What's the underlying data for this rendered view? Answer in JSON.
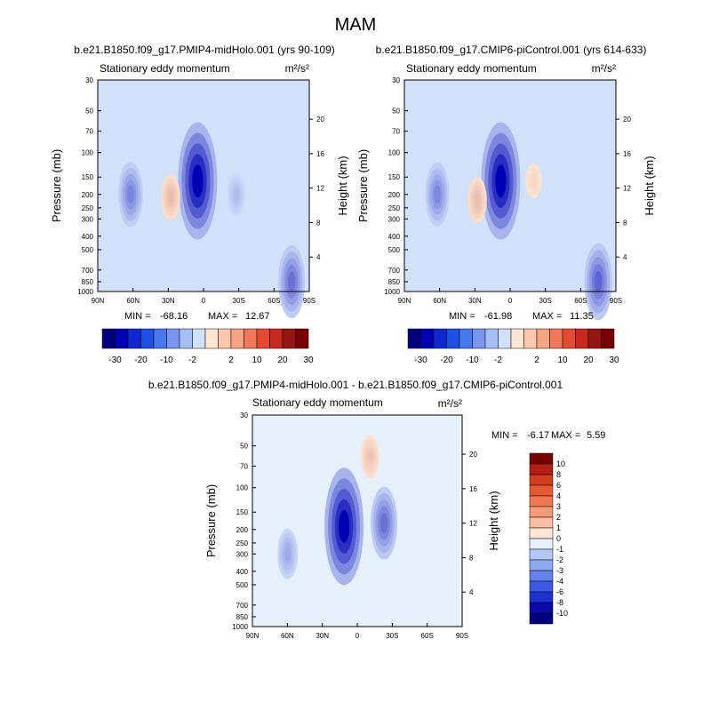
{
  "figure": {
    "title": "MAM",
    "min_label": "MIN =",
    "max_label": "MAX ="
  },
  "chart_data": [
    {
      "type": "heatmap",
      "title": "b.e21.B1850.f09_g17.PMIP4-midHolo.001 (yrs 90-109)",
      "subtitle": "Stationary eddy momentum",
      "units": "m²/s²",
      "xlabel": "",
      "ylabel": "Pressure (mb)",
      "ylabel_right": "Height (km)",
      "x_ticks": [
        "90N",
        "60N",
        "30N",
        "0",
        "30S",
        "60S",
        "90S"
      ],
      "y_ticks": [
        30,
        50,
        70,
        100,
        150,
        200,
        250,
        300,
        400,
        500,
        700,
        850,
        1000
      ],
      "height_ticks": [
        4,
        8,
        12,
        16,
        20
      ],
      "ylim": [
        1000,
        30
      ],
      "min": "-68.16",
      "max": "12.67",
      "features": [
        {
          "lat": 62,
          "p": 200,
          "value": -25
        },
        {
          "lat": 5,
          "p": 160,
          "value": -60
        },
        {
          "lat": 28,
          "p": 210,
          "value": 12
        },
        {
          "lat": -28,
          "p": 200,
          "value": -10
        },
        {
          "lat": -75,
          "p": 850,
          "value": -30
        }
      ]
    },
    {
      "type": "heatmap",
      "title": "b.e21.B1850.f09_g17.CMIP6-piControl.001 (yrs 614-633)",
      "subtitle": "Stationary eddy momentum",
      "units": "m²/s²",
      "xlabel": "",
      "ylabel": "Pressure (mb)",
      "ylabel_right": "Height (km)",
      "x_ticks": [
        "90N",
        "60N",
        "30N",
        "0",
        "30S",
        "60S",
        "90S"
      ],
      "y_ticks": [
        30,
        50,
        70,
        100,
        150,
        200,
        250,
        300,
        400,
        500,
        700,
        850,
        1000
      ],
      "height_ticks": [
        4,
        8,
        12,
        16,
        20
      ],
      "ylim": [
        1000,
        30
      ],
      "min": "-61.98",
      "max": "11.35",
      "features": [
        {
          "lat": 62,
          "p": 200,
          "value": -22
        },
        {
          "lat": 8,
          "p": 160,
          "value": -55
        },
        {
          "lat": 28,
          "p": 220,
          "value": 11
        },
        {
          "lat": -20,
          "p": 160,
          "value": 4
        },
        {
          "lat": -75,
          "p": 850,
          "value": -30
        }
      ]
    },
    {
      "type": "heatmap",
      "title": "b.e21.B1850.f09_g17.PMIP4-midHolo.001 - b.e21.B1850.f09_g17.CMIP6-piControl.001",
      "subtitle": "Stationary eddy momentum",
      "units": "m²/s²",
      "xlabel": "",
      "ylabel": "Pressure (mb)",
      "ylabel_right": "Height (km)",
      "x_ticks": [
        "90N",
        "60N",
        "30N",
        "0",
        "30S",
        "60S",
        "90S"
      ],
      "y_ticks": [
        30,
        50,
        70,
        100,
        150,
        200,
        250,
        300,
        400,
        500,
        700,
        850,
        1000
      ],
      "height_ticks": [
        4,
        8,
        12,
        16,
        20
      ],
      "ylim": [
        1000,
        30
      ],
      "min": "-6.17",
      "max": "5.59",
      "features": [
        {
          "lat": 12,
          "p": 190,
          "value": -6
        },
        {
          "lat": -22,
          "p": 180,
          "value": -3
        },
        {
          "lat": 60,
          "p": 300,
          "value": -1.5
        },
        {
          "lat": -10,
          "p": 60,
          "value": 1
        }
      ]
    }
  ],
  "colorbars": {
    "top": {
      "labels": [
        "-30",
        "-20",
        "-10",
        "-2",
        "2",
        "10",
        "20",
        "30"
      ],
      "colors": [
        "#00007f",
        "#0000b4",
        "#0f28d2",
        "#1e50e6",
        "#4678f0",
        "#7896f0",
        "#a5bef5",
        "#d2e1fa",
        "#ffe6d2",
        "#ffc8aa",
        "#f5a582",
        "#f0785a",
        "#e64b32",
        "#c8281e",
        "#961414",
        "#780000"
      ]
    },
    "bottom": {
      "labels": [
        "10",
        "8",
        "6",
        "4",
        "3",
        "2",
        "1",
        "0",
        "-1",
        "-2",
        "-3",
        "-4",
        "-6",
        "-8",
        "-10"
      ],
      "colors": [
        "#780000",
        "#b41e14",
        "#d23c1e",
        "#e65a32",
        "#f07850",
        "#f59b78",
        "#fabea0",
        "#ffe6d2",
        "#e6f0fa",
        "#b4c8f5",
        "#8caaf0",
        "#6482eb",
        "#3c5ae6",
        "#1e32d2",
        "#0a0aaa",
        "#00007f"
      ]
    }
  }
}
